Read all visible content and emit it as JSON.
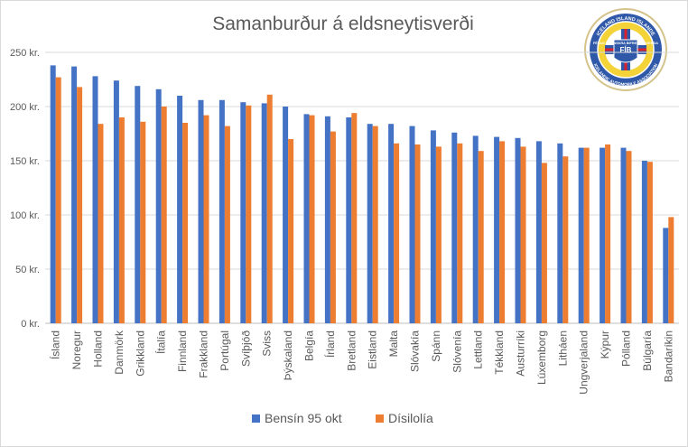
{
  "chart_data": {
    "type": "bar",
    "title": "Samanburður á eldsneytisverði",
    "xlabel": "",
    "ylabel": "",
    "ylim": [
      0,
      250
    ],
    "y_ticks": [
      "0 kr.",
      "50 kr.",
      "100 kr.",
      "150 kr.",
      "200 kr.",
      "250 kr."
    ],
    "grid": true,
    "legend_position": "bottom",
    "categories": [
      "Ísland",
      "Noregur",
      "Holland",
      "Danmörk",
      "Grikkland",
      "Ítalía",
      "Finnland",
      "Frakkland",
      "Portúgal",
      "Svíþjóð",
      "Sviss",
      "Þýskaland",
      "Belgía",
      "Írland",
      "Bretland",
      "Eistland",
      "Malta",
      "Slóvakía",
      "Spánn",
      "Slóvenía",
      "Lettland",
      "Tékkland",
      "Austurríki",
      "Lúxemborg",
      "Litháen",
      "Ungverjaland",
      "Kýpur",
      "Pólland",
      "Búlgaría",
      "Bandaríkin"
    ],
    "series": [
      {
        "name": "Bensín 95 okt",
        "color": "#4472C4",
        "values": [
          238,
          237,
          228,
          224,
          219,
          216,
          210,
          206,
          206,
          204,
          203,
          200,
          193,
          191,
          190,
          184,
          184,
          182,
          178,
          176,
          173,
          172,
          171,
          168,
          166,
          162,
          162,
          162,
          150,
          88
        ]
      },
      {
        "name": "Dísilolía",
        "color": "#ED7D31",
        "values": [
          227,
          218,
          184,
          190,
          186,
          200,
          185,
          192,
          182,
          201,
          211,
          170,
          192,
          177,
          194,
          182,
          166,
          165,
          163,
          166,
          159,
          168,
          163,
          148,
          154,
          162,
          165,
          159,
          149,
          98
        ]
      }
    ],
    "logo": {
      "ring_text": "ICELAND ISLAND ISLANDE",
      "banner_text": "FÉLAG ÍSLENSKRA BIFREIÐAEIGENDA",
      "lower_text": "ICELANDIC AUTOMOBILE ASSOCIATION",
      "monogram": "FÍB",
      "icon": "fib-logo-seal"
    }
  }
}
